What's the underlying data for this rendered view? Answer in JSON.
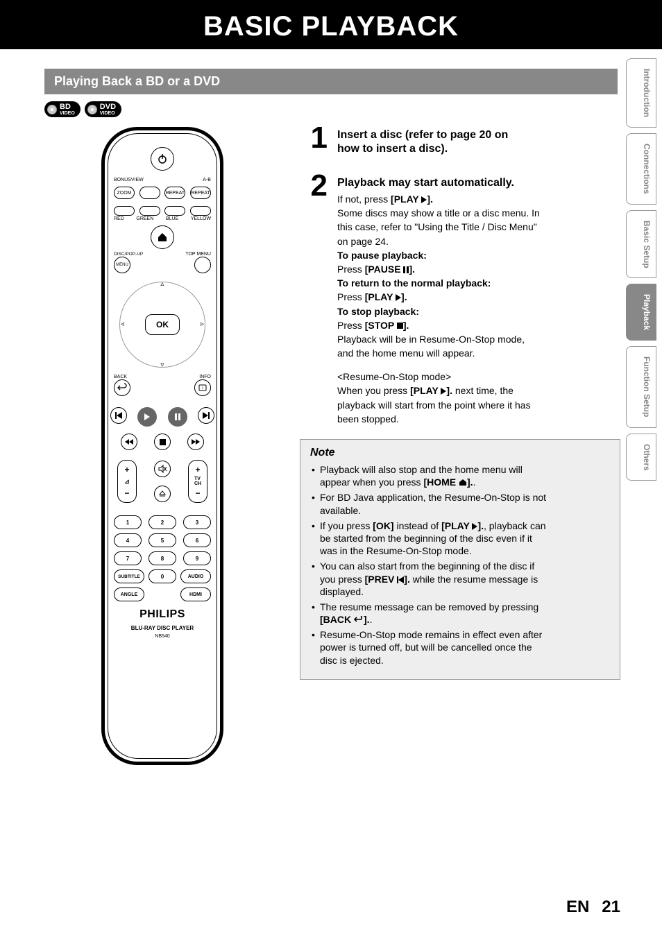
{
  "page": {
    "title": "BASIC PLAYBACK",
    "section_header": "Playing Back a BD or a DVD",
    "lang": "EN",
    "page_number": "21"
  },
  "badges": {
    "bd_top": "BD",
    "bd_sub": "VIDEO",
    "dvd_top": "DVD",
    "dvd_sub": "VIDEO"
  },
  "tabs": [
    {
      "label": "Introduction",
      "active": false
    },
    {
      "label": "Connections",
      "active": false
    },
    {
      "label": "Basic Setup",
      "active": false
    },
    {
      "label": "Playback",
      "active": true
    },
    {
      "label": "Function Setup",
      "active": false
    },
    {
      "label": "Others",
      "active": false
    }
  ],
  "steps": {
    "one": {
      "num": "1",
      "lead1": "Insert a disc (refer to page 20 on",
      "lead2": "how to insert a disc)."
    },
    "two": {
      "num": "2",
      "lead": "Playback may start automatically.",
      "ifnot": "If not, press ",
      "play_lbl": "[PLAY ",
      "close": "].",
      "discmenu1": "Some discs may show a title or a disc menu. In",
      "discmenu2": "this case, refer to \"Using the Title / Disc Menu\"",
      "discmenu3": "on page 24.",
      "pause_h": "To pause playback:",
      "pause_p": "Press ",
      "pause_lbl": "[PAUSE ",
      "return_h": "To return to the normal playback:",
      "return_p": "Press ",
      "stop_h": "To stop playback:",
      "stop_p": "Press ",
      "stop_lbl": "[STOP ",
      "resume1": "Playback will be in Resume-On-Stop mode,",
      "resume2": "and the home menu will appear.",
      "ros_h": "<Resume-On-Stop mode>",
      "ros1": "When you press ",
      "ros2": " next time, the",
      "ros3": "playback will start from the point where it has",
      "ros4": "been stopped."
    }
  },
  "note": {
    "title": "Note",
    "home_lbl": "[HOME ",
    "ok_lbl": "[OK]",
    "prev_lbl": "[PREV ",
    "back_lbl": "[BACK ",
    "items": {
      "n1a": "Playback will also stop and the home menu will",
      "n1b": "appear when you press ",
      "n2a": "For BD Java application, the Resume-On-Stop is not",
      "n2b": "available.",
      "n3a": "If you press ",
      "n3b": " instead of ",
      "n3c": ", playback can",
      "n3d": "be started from the beginning of the disc even if it",
      "n3e": "was in the Resume-On-Stop mode.",
      "n4a": "You can also start from the beginning of the disc if",
      "n4b": "you press ",
      "n4c": " while the resume message is",
      "n4d": "displayed.",
      "n5a": "The resume message can be removed by pressing",
      "n6a": "Resume-On-Stop mode remains in effect even after",
      "n6b": "power is turned off, but will be cancelled once the",
      "n6c": "disc is ejected."
    }
  },
  "remote": {
    "bonusview": "BONUSVIEW",
    "ab": "A-B",
    "zoom": "ZOOM",
    "repeat": "REPEAT",
    "red": "RED",
    "green": "GREEN",
    "blue": "BLUE",
    "yellow": "YELLOW",
    "disc_popup": "DISC/POP-UP",
    "menu": "MENU",
    "topmenu": "TOP MENU",
    "ok": "OK",
    "back": "BACK",
    "info": "INFO",
    "tvch": "TV\nCH",
    "subtitle": "SUBTITLE",
    "audio": "AUDIO",
    "angle": "ANGLE",
    "hdmi": "HDMI",
    "brand": "PHILIPS",
    "subbrand": "BLU-RAY DISC PLAYER",
    "model": "NB540",
    "nums": [
      "1",
      "2",
      "3",
      "4",
      "5",
      "6",
      "7",
      "8",
      "9",
      "0"
    ]
  },
  "colors": {
    "header_bg": "#888888",
    "note_bg": "#eeeeee",
    "note_border": "#999999",
    "tab_border": "#999999",
    "tab_text": "#888888",
    "active_tab_bg": "#888888"
  }
}
